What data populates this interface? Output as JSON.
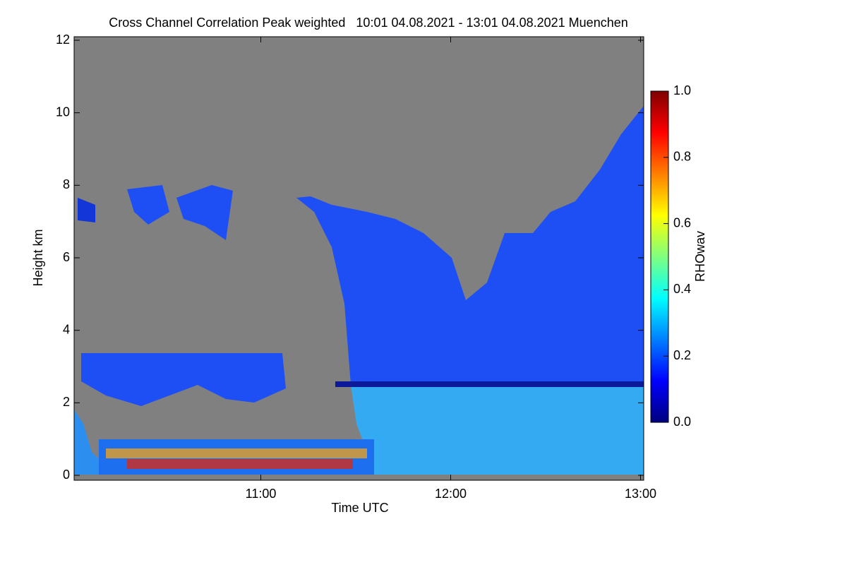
{
  "chart_data": {
    "type": "heatmap",
    "title": "Cross Channel Correlation Peak weighted   10:01 04.08.2021 - 13:01 04.08.2021 Muenchen",
    "x_label": "Time UTC",
    "y_label": "Height km",
    "xlim": [
      10.0167,
      13.0167
    ],
    "xticks": [
      {
        "value": 11,
        "label": "11:00"
      },
      {
        "value": 12,
        "label": "12:00"
      },
      {
        "value": 13,
        "label": "13:00"
      }
    ],
    "ylim": [
      0,
      12
    ],
    "yticks": [
      0,
      2,
      4,
      6,
      8,
      10,
      12
    ],
    "colorbar": {
      "label": "RHOwav",
      "lim": [
        0,
        1
      ],
      "ticks": [
        {
          "value": 0,
          "label": "0.0"
        },
        {
          "value": 0.2,
          "label": "0.2"
        },
        {
          "value": 0.4,
          "label": "0.4"
        },
        {
          "value": 0.6,
          "label": "0.6"
        },
        {
          "value": 0.8,
          "label": "0.8"
        },
        {
          "value": 1,
          "label": "1.0"
        }
      ],
      "colors": [
        "#00007f",
        "#0000ff",
        "#007fff",
        "#00ffff",
        "#7fff7f",
        "#ffff00",
        "#ff7f00",
        "#ff0000",
        "#7f0000"
      ]
    },
    "missing_color": "#808080"
  }
}
